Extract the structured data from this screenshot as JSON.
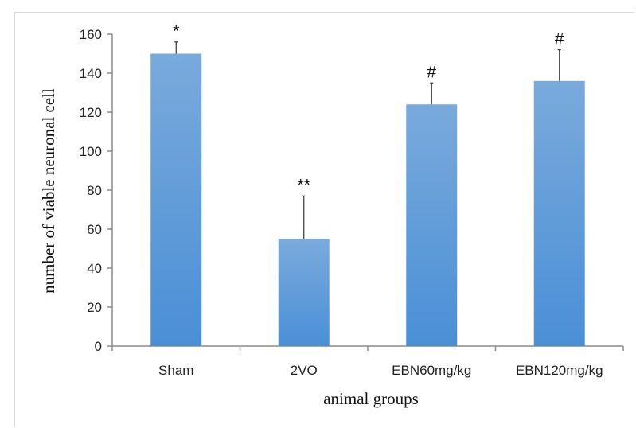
{
  "chart_data": {
    "type": "bar",
    "categories": [
      "Sham",
      "2VO",
      "EBN60mg/kg",
      "EBN120mg/kg"
    ],
    "values": [
      150,
      55,
      124,
      136
    ],
    "error_upper": [
      156,
      77,
      135,
      152
    ],
    "annotations": [
      "*",
      "**",
      "#",
      "#"
    ],
    "ylim": [
      0,
      160
    ],
    "yticks": [
      0,
      20,
      40,
      60,
      80,
      100,
      120,
      140,
      160
    ],
    "xlabel": "animal groups",
    "ylabel": "number of viable neuronal cell",
    "grid": false,
    "bar_color_top": "#7aaadc",
    "bar_color_bottom": "#4a8fd6"
  }
}
